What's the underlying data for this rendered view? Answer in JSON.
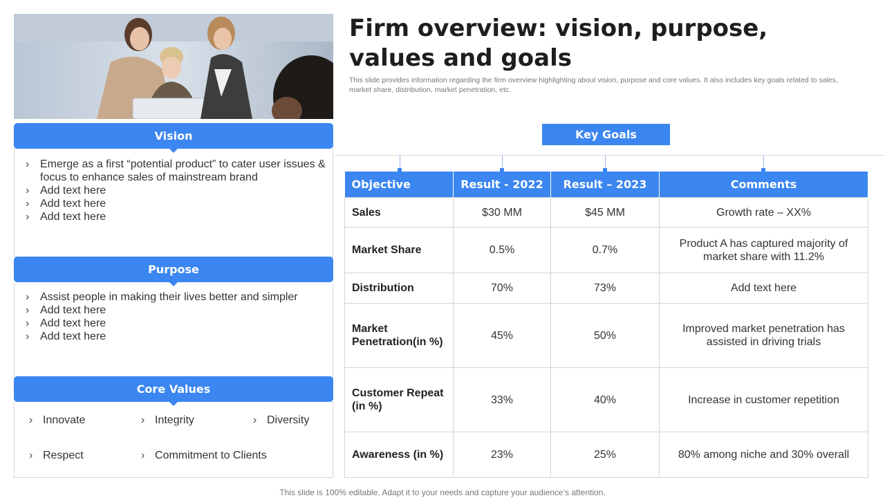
{
  "title": "Firm overview: vision, purpose, values and goals",
  "subtitle": "This slide provides information regarding the firm overview highlighting about vision, purpose and core values. It also includes key goals related to sales, market share, distribution, market penetration, etc.",
  "vision": {
    "heading": "Vision",
    "items": [
      "Emerge as a first “potential product” to cater user issues & focus to enhance sales of mainstream brand",
      "Add text here",
      "Add text here",
      "Add text here"
    ]
  },
  "purpose": {
    "heading": "Purpose",
    "items": [
      "Assist people in making their lives better and simpler",
      "Add text here",
      "Add text here",
      "Add text here"
    ]
  },
  "core_values": {
    "heading": "Core Values",
    "items": [
      "Innovate",
      "Integrity",
      "Diversity",
      "Respect",
      "Commitment to Clients"
    ]
  },
  "key_goals": {
    "heading": "Key Goals",
    "columns": [
      "Objective",
      "Result - 2022",
      "Result – 2023",
      "Comments"
    ],
    "rows": [
      [
        "Sales",
        "$30 MM",
        "$45 MM",
        "Growth rate – XX%"
      ],
      [
        "Market Share",
        "0.5%",
        "0.7%",
        "Product A has captured majority of market share with 11.2%"
      ],
      [
        "Distribution",
        "70%",
        "73%",
        "Add text here"
      ],
      [
        "Market Penetration(in %)",
        "45%",
        "50%",
        "Improved market penetration has assisted in driving trials"
      ],
      [
        "Customer Repeat (in %)",
        "33%",
        "40%",
        "Increase in customer repetition"
      ],
      [
        "Awareness (in %)",
        "23%",
        "25%",
        "80% among niche and 30% overall"
      ]
    ]
  },
  "footer": "This slide is 100% editable. Adapt it to your needs and capture your audience’s attention.",
  "colors": {
    "accent": "#3b86f0",
    "border": "#d6d6d6",
    "title": "#1e1e1e"
  },
  "photo": {
    "icon": "team-photo"
  }
}
